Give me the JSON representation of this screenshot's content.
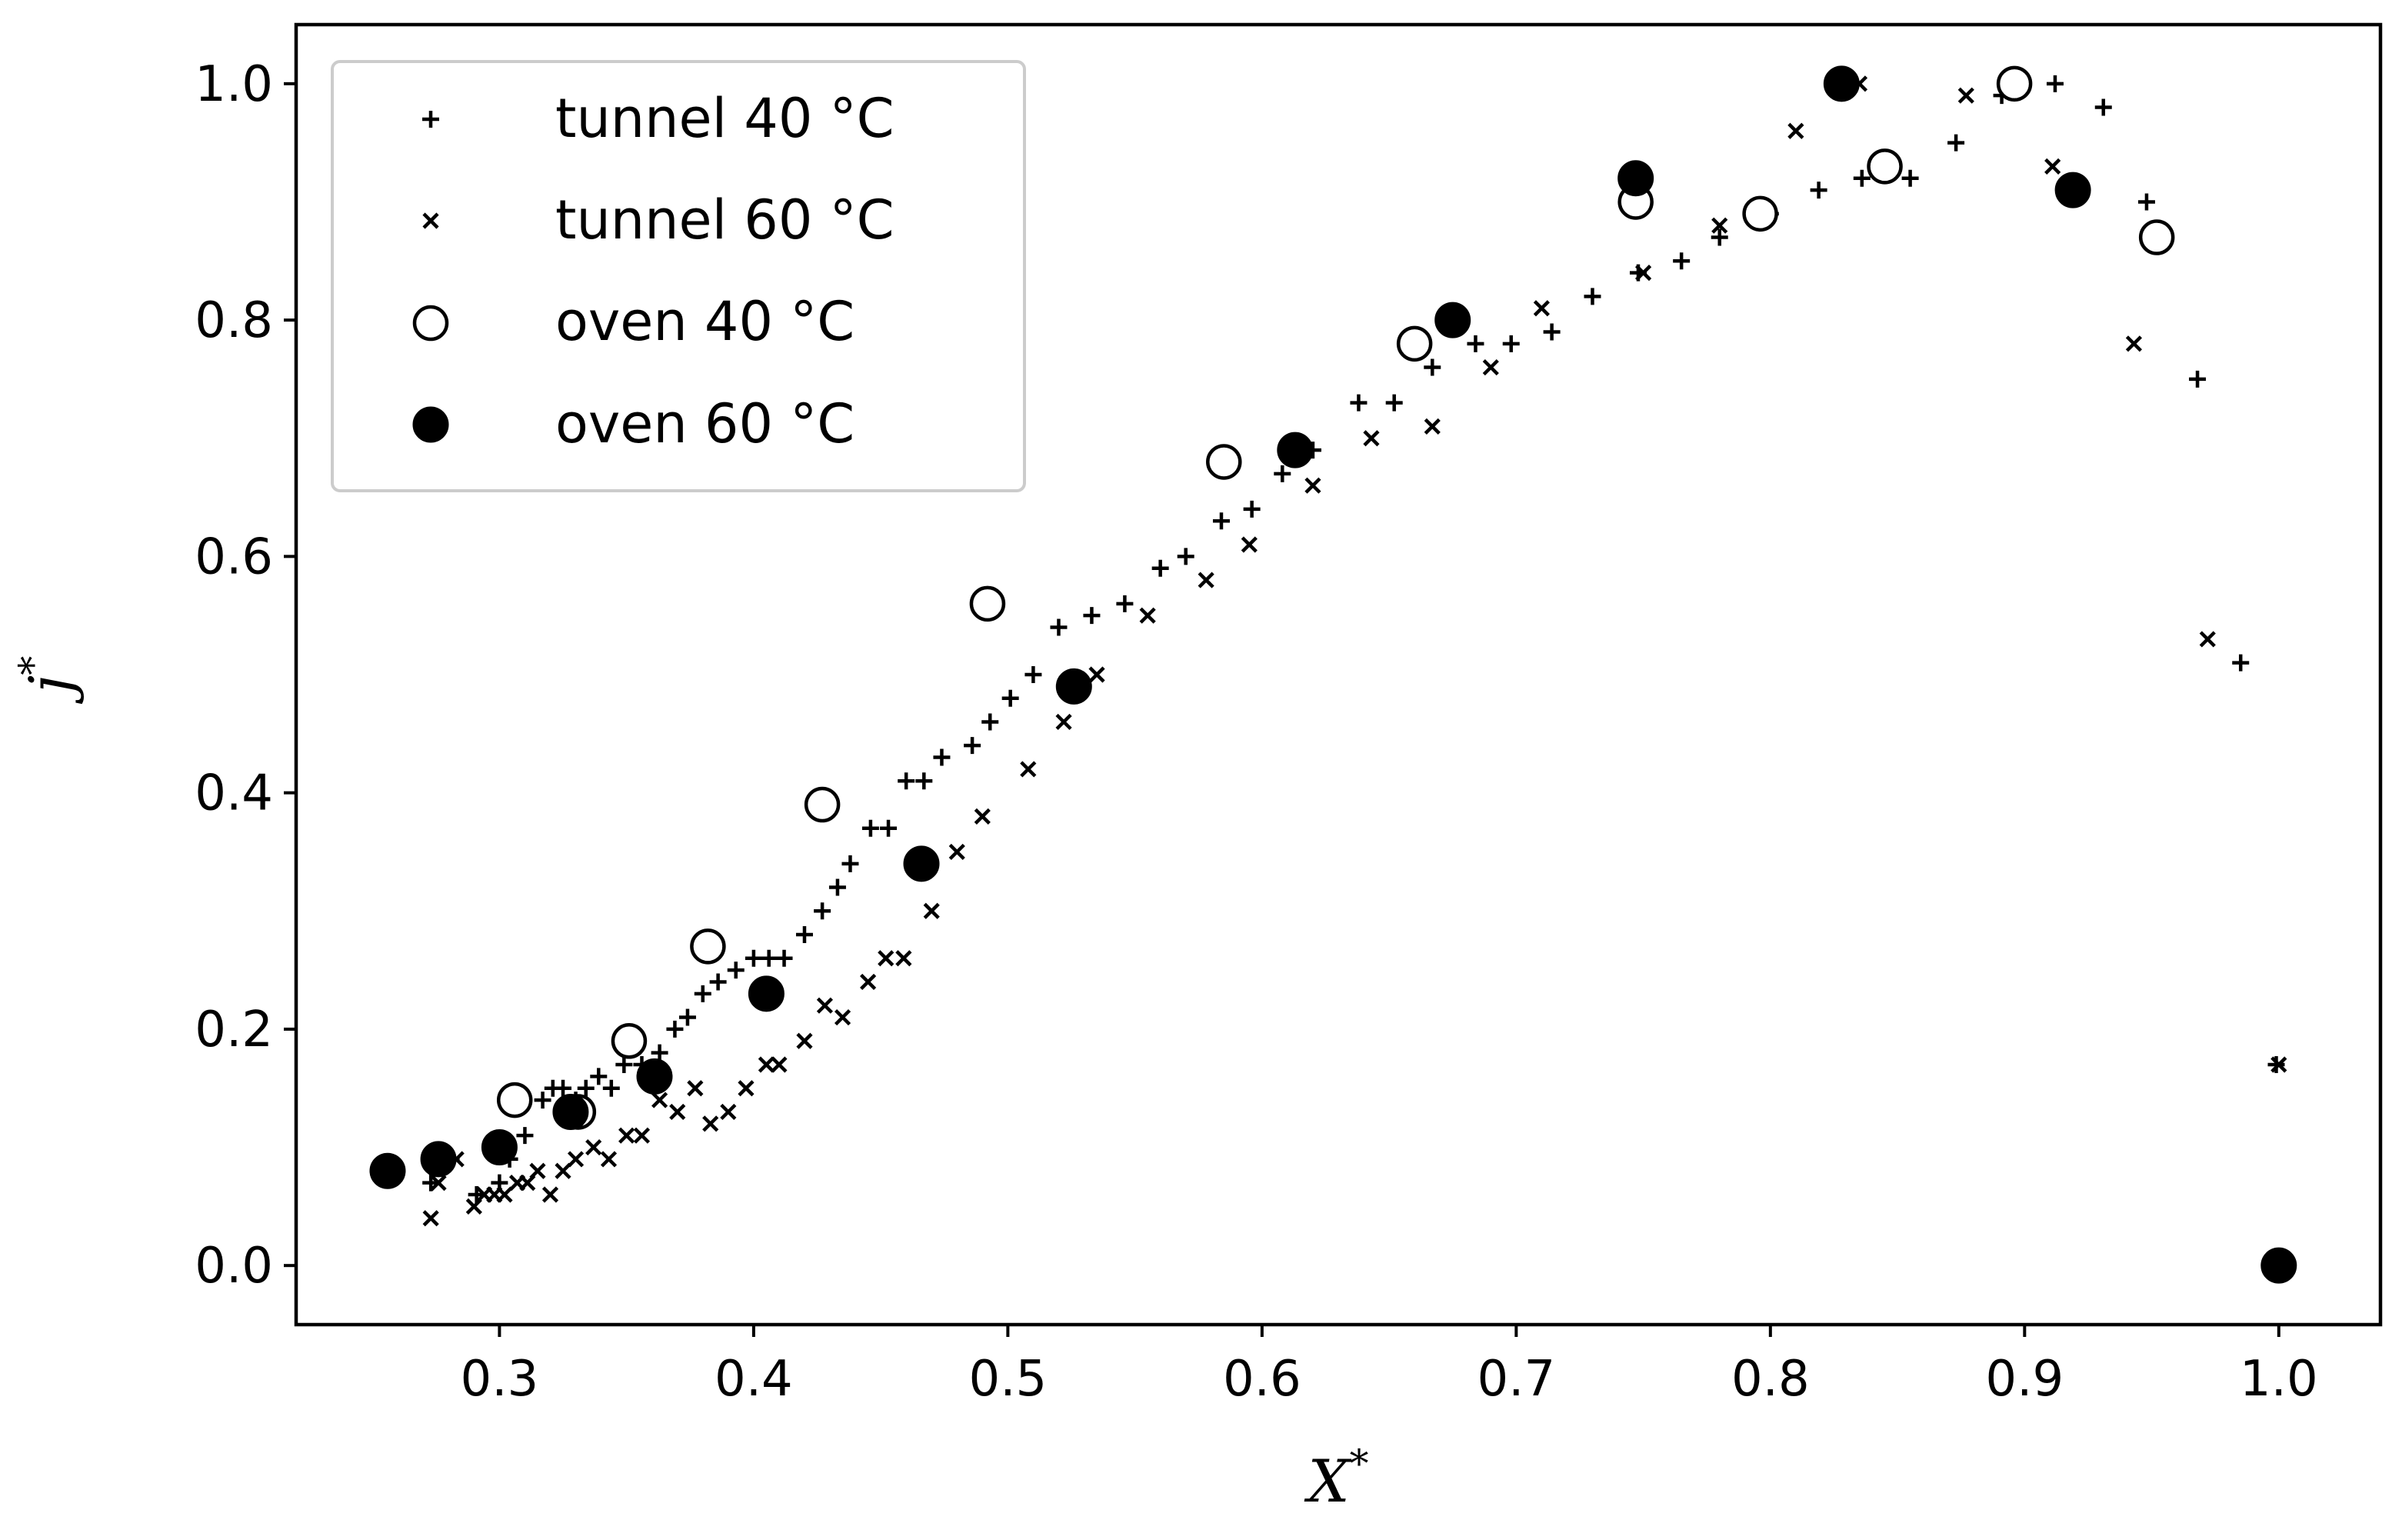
{
  "chart_data": {
    "type": "scatter",
    "title": "",
    "xlabel": "X",
    "xlabel_sup": "*",
    "ylabel": "j",
    "ylabel_sup": "*",
    "xlim": [
      0.22,
      1.04
    ],
    "ylim": [
      -0.05,
      1.05
    ],
    "xticks": [
      0.3,
      0.4,
      0.5,
      0.6,
      0.7,
      0.8,
      0.9,
      1.0
    ],
    "xtick_labels": [
      "0.3",
      "0.4",
      "0.5",
      "0.6",
      "0.7",
      "0.8",
      "0.9",
      "1.0"
    ],
    "yticks": [
      0.0,
      0.2,
      0.4,
      0.6,
      0.8,
      1.0
    ],
    "ytick_labels": [
      "0.0",
      "0.2",
      "0.4",
      "0.6",
      "0.8",
      "1.0"
    ],
    "grid": false,
    "legend_position": "top-left",
    "series": [
      {
        "name": "tunnel 40 °C",
        "marker": "plus",
        "x": [
          0.273,
          0.281,
          0.291,
          0.3,
          0.304,
          0.31,
          0.317,
          0.321,
          0.325,
          0.33,
          0.334,
          0.339,
          0.344,
          0.349,
          0.356,
          0.363,
          0.369,
          0.374,
          0.38,
          0.386,
          0.393,
          0.4,
          0.406,
          0.412,
          0.42,
          0.427,
          0.433,
          0.438,
          0.446,
          0.453,
          0.46,
          0.467,
          0.474,
          0.486,
          0.493,
          0.501,
          0.51,
          0.52,
          0.533,
          0.546,
          0.56,
          0.57,
          0.584,
          0.596,
          0.608,
          0.62,
          0.638,
          0.652,
          0.667,
          0.684,
          0.698,
          0.714,
          0.73,
          0.748,
          0.765,
          0.78,
          0.8,
          0.819,
          0.836,
          0.855,
          0.873,
          0.891,
          0.912,
          0.931,
          0.948,
          0.968,
          0.985,
          0.999
        ],
        "y": [
          0.07,
          0.09,
          0.06,
          0.07,
          0.09,
          0.11,
          0.14,
          0.15,
          0.15,
          0.14,
          0.15,
          0.16,
          0.15,
          0.17,
          0.17,
          0.18,
          0.2,
          0.21,
          0.23,
          0.24,
          0.25,
          0.26,
          0.26,
          0.26,
          0.28,
          0.3,
          0.32,
          0.34,
          0.37,
          0.37,
          0.41,
          0.41,
          0.43,
          0.44,
          0.46,
          0.48,
          0.5,
          0.54,
          0.55,
          0.56,
          0.59,
          0.6,
          0.63,
          0.64,
          0.67,
          0.69,
          0.73,
          0.73,
          0.76,
          0.78,
          0.78,
          0.79,
          0.82,
          0.84,
          0.85,
          0.87,
          0.89,
          0.91,
          0.92,
          0.92,
          0.95,
          0.99,
          1.0,
          0.98,
          0.9,
          0.75,
          0.51,
          0.17
        ]
      },
      {
        "name": "tunnel 60 °C",
        "marker": "x",
        "x": [
          0.273,
          0.276,
          0.283,
          0.29,
          0.294,
          0.298,
          0.302,
          0.307,
          0.311,
          0.315,
          0.32,
          0.325,
          0.33,
          0.337,
          0.343,
          0.35,
          0.356,
          0.363,
          0.37,
          0.377,
          0.383,
          0.39,
          0.397,
          0.405,
          0.41,
          0.42,
          0.428,
          0.435,
          0.445,
          0.452,
          0.459,
          0.47,
          0.48,
          0.49,
          0.508,
          0.522,
          0.535,
          0.555,
          0.578,
          0.595,
          0.62,
          0.643,
          0.667,
          0.69,
          0.71,
          0.75,
          0.78,
          0.81,
          0.835,
          0.877,
          0.911,
          0.943,
          0.972,
          1.0
        ],
        "y": [
          0.04,
          0.07,
          0.09,
          0.05,
          0.06,
          0.06,
          0.06,
          0.07,
          0.07,
          0.08,
          0.06,
          0.08,
          0.09,
          0.1,
          0.09,
          0.11,
          0.11,
          0.14,
          0.13,
          0.15,
          0.12,
          0.13,
          0.15,
          0.17,
          0.17,
          0.19,
          0.22,
          0.21,
          0.24,
          0.26,
          0.26,
          0.3,
          0.35,
          0.38,
          0.42,
          0.46,
          0.5,
          0.55,
          0.58,
          0.61,
          0.66,
          0.7,
          0.71,
          0.76,
          0.81,
          0.84,
          0.88,
          0.96,
          1.0,
          0.99,
          0.93,
          0.78,
          0.53,
          0.17
        ]
      },
      {
        "name": "oven 40 °C",
        "marker": "circle-open",
        "x": [
          0.306,
          0.331,
          0.351,
          0.382,
          0.427,
          0.492,
          0.585,
          0.66,
          0.747,
          0.796,
          0.845,
          0.896,
          0.952
        ],
        "y": [
          0.14,
          0.13,
          0.19,
          0.27,
          0.39,
          0.56,
          0.68,
          0.78,
          0.9,
          0.89,
          0.93,
          1.0,
          0.87
        ]
      },
      {
        "name": "oven 60 °C",
        "marker": "circle-filled",
        "x": [
          0.256,
          0.276,
          0.3,
          0.328,
          0.361,
          0.405,
          0.466,
          0.526,
          0.613,
          0.675,
          0.747,
          0.828,
          0.919,
          1.0
        ],
        "y": [
          0.08,
          0.09,
          0.1,
          0.13,
          0.16,
          0.23,
          0.34,
          0.49,
          0.69,
          0.8,
          0.92,
          1.0,
          0.91,
          0.0
        ]
      }
    ]
  }
}
